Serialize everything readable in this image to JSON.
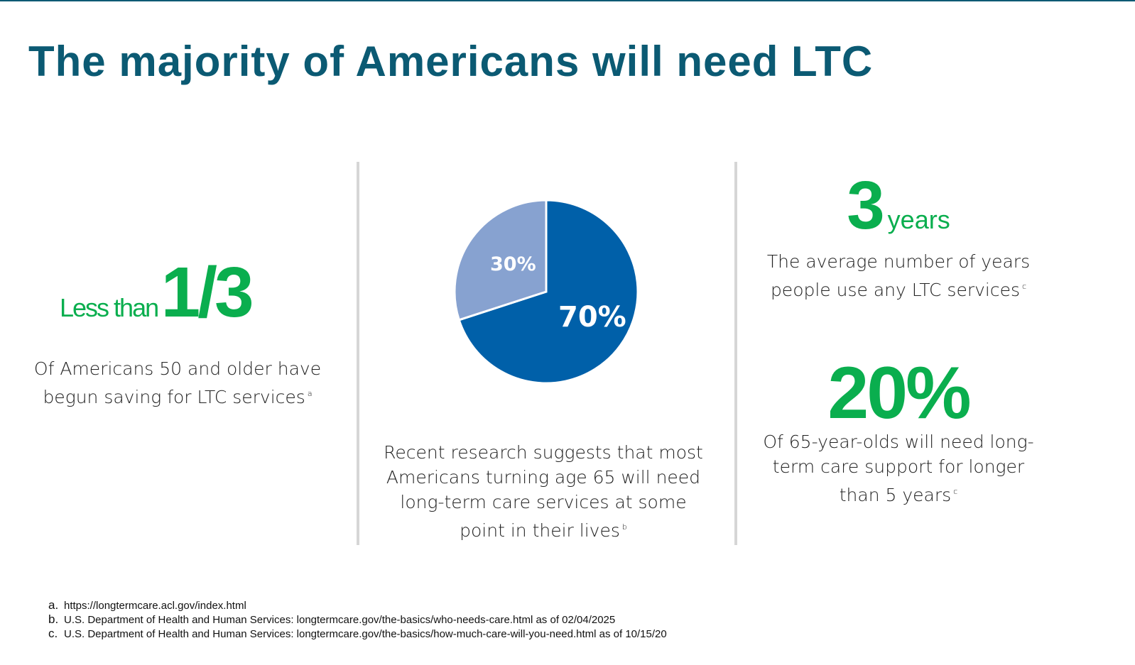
{
  "title": "The majority of Americans will need LTC",
  "col1": {
    "prefix": "Less than",
    "stat": "1/3",
    "text": "Of Americans 50 and older have begun saving for LTC services",
    "note": "a"
  },
  "col2": {
    "text": "Recent research suggests that most Americans turning age 65 will need long-term care services at some point in their lives",
    "note": "b"
  },
  "col3": {
    "stat1": "3",
    "unit1": "years",
    "text1": "The average number of years people use any LTC services",
    "note1": "c",
    "stat2": "20%",
    "text2": "Of 65-year-olds will need long-term care support for longer than 5 years",
    "note2": "c"
  },
  "chart_data": {
    "type": "pie",
    "slices": [
      {
        "label": "70%",
        "value": 70,
        "color": "#0060a9"
      },
      {
        "label": "30%",
        "value": 30,
        "color": "#87a2d0"
      }
    ]
  },
  "footnotes": [
    {
      "letter": "a.",
      "text": "https://longtermcare.acl.gov/index.html"
    },
    {
      "letter": "b.",
      "text": "U.S. Department of Health and Human Services: longtermcare.gov/the-basics/who-needs-care.html  as of 02/04/2025"
    },
    {
      "letter": "c.",
      "text": "U.S. Department of Health and Human Services: longtermcare.gov/the-basics/how-much-care-will-you-need.html as of 10/15/20"
    }
  ],
  "colors": {
    "title": "#0b5a73",
    "accent": "#0aae4e"
  }
}
